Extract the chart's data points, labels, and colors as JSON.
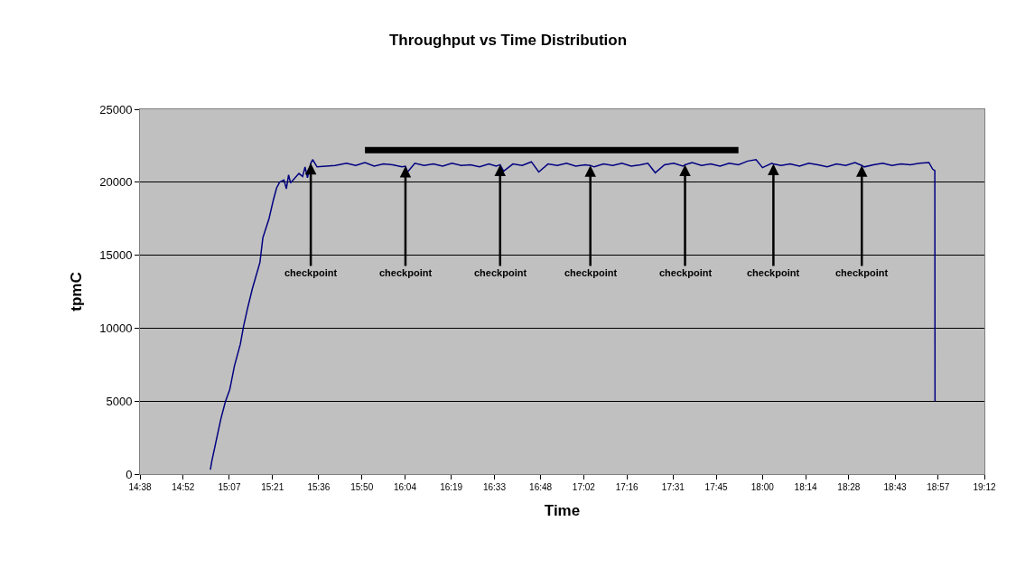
{
  "chart_data": {
    "type": "line",
    "title": "Throughput vs Time Distribution",
    "xlabel": "Time",
    "ylabel": "tpmC",
    "xlim": [
      14.63333,
      19.2
    ],
    "xticks": [
      {
        "value": 14.63333,
        "label": "14:38"
      },
      {
        "value": 14.86667,
        "label": "14:52"
      },
      {
        "value": 15.11667,
        "label": "15:07"
      },
      {
        "value": 15.35,
        "label": "15:21"
      },
      {
        "value": 15.6,
        "label": "15:36"
      },
      {
        "value": 15.83333,
        "label": "15:50"
      },
      {
        "value": 16.06667,
        "label": "16:04"
      },
      {
        "value": 16.31667,
        "label": "16:19"
      },
      {
        "value": 16.55,
        "label": "16:33"
      },
      {
        "value": 16.8,
        "label": "16:48"
      },
      {
        "value": 17.03333,
        "label": "17:02"
      },
      {
        "value": 17.26667,
        "label": "17:16"
      },
      {
        "value": 17.51667,
        "label": "17:31"
      },
      {
        "value": 17.75,
        "label": "17:45"
      },
      {
        "value": 18.0,
        "label": "18:00"
      },
      {
        "value": 18.23333,
        "label": "18:14"
      },
      {
        "value": 18.46667,
        "label": "18:28"
      },
      {
        "value": 18.71667,
        "label": "18:43"
      },
      {
        "value": 18.95,
        "label": "18:57"
      },
      {
        "value": 19.2,
        "label": "19:12"
      }
    ],
    "ylim": [
      0,
      25000
    ],
    "yticks": [
      0,
      5000,
      10000,
      15000,
      20000,
      25000
    ],
    "grid": "y",
    "marker": "none",
    "line_style": "solid",
    "series": [
      {
        "color": "#000080",
        "x": [
          15.014,
          15.022,
          15.071,
          15.095,
          15.119,
          15.144,
          15.176,
          15.193,
          15.214,
          15.241,
          15.282,
          15.298,
          15.331,
          15.355,
          15.372,
          15.388,
          15.412,
          15.425,
          15.437,
          15.448,
          15.493,
          15.513,
          15.526,
          15.539,
          15.557,
          15.567,
          15.591,
          15.689,
          15.75,
          15.8,
          15.85,
          15.9,
          15.95,
          16.0,
          16.05,
          16.069,
          16.08,
          16.12,
          16.17,
          16.22,
          16.27,
          16.32,
          16.37,
          16.42,
          16.47,
          16.52,
          16.56,
          16.581,
          16.6,
          16.65,
          16.7,
          16.75,
          16.79,
          16.84,
          16.89,
          16.94,
          16.99,
          17.04,
          17.069,
          17.09,
          17.14,
          17.19,
          17.24,
          17.29,
          17.34,
          17.38,
          17.42,
          17.47,
          17.52,
          17.57,
          17.581,
          17.62,
          17.67,
          17.72,
          17.77,
          17.82,
          17.87,
          17.92,
          17.965,
          18.0,
          18.05,
          18.059,
          18.1,
          18.15,
          18.2,
          18.25,
          18.3,
          18.35,
          18.4,
          18.45,
          18.5,
          18.537,
          18.55,
          18.6,
          18.65,
          18.7,
          18.75,
          18.8,
          18.85,
          18.9,
          18.92,
          18.932,
          18.933
        ],
        "values": [
          300,
          900,
          3800,
          4950,
          5800,
          7400,
          8900,
          10100,
          11300,
          12700,
          14500,
          16200,
          17500,
          18800,
          19600,
          20000,
          20150,
          19550,
          20500,
          19950,
          20600,
          20400,
          21050,
          20300,
          21300,
          21550,
          21050,
          21150,
          21300,
          21150,
          21350,
          21100,
          21250,
          21200,
          21050,
          21100,
          20700,
          21300,
          21150,
          21250,
          21100,
          21300,
          21150,
          21200,
          21050,
          21250,
          21100,
          21200,
          20750,
          21250,
          21150,
          21400,
          20700,
          21250,
          21150,
          21300,
          21100,
          21200,
          21150,
          21050,
          21250,
          21150,
          21300,
          21100,
          21200,
          21300,
          20650,
          21200,
          21300,
          21100,
          21200,
          21350,
          21150,
          21250,
          21100,
          21300,
          21200,
          21450,
          21550,
          21000,
          21300,
          21250,
          21150,
          21250,
          21100,
          21300,
          21200,
          21050,
          21250,
          21150,
          21350,
          21150,
          21050,
          21200,
          21300,
          21150,
          21250,
          21200,
          21300,
          21350,
          20900,
          20800,
          5000
        ]
      },
      {
        "color": "#000000",
        "x": [
          15.85,
          17.87
        ],
        "values": [
          22200,
          22200
        ]
      }
    ],
    "annotations": [
      {
        "text": "checkpoint",
        "x": 15.557,
        "y": 21300
      },
      {
        "text": "checkpoint",
        "x": 16.069,
        "y": 21100
      },
      {
        "text": "checkpoint",
        "x": 16.581,
        "y": 21200
      },
      {
        "text": "checkpoint",
        "x": 17.069,
        "y": 21150
      },
      {
        "text": "checkpoint",
        "x": 17.581,
        "y": 21200
      },
      {
        "text": "checkpoint",
        "x": 18.059,
        "y": 21250
      },
      {
        "text": "checkpoint",
        "x": 18.537,
        "y": 21150
      }
    ]
  }
}
